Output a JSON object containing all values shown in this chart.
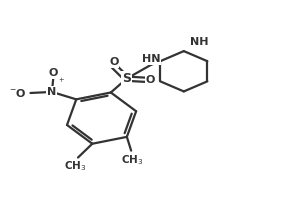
{
  "bg_color": "#ffffff",
  "line_color": "#333333",
  "line_width": 1.6,
  "figsize": [
    2.89,
    2.15
  ],
  "dpi": 100,
  "xlim": [
    0,
    10
  ],
  "ylim": [
    0,
    10
  ]
}
